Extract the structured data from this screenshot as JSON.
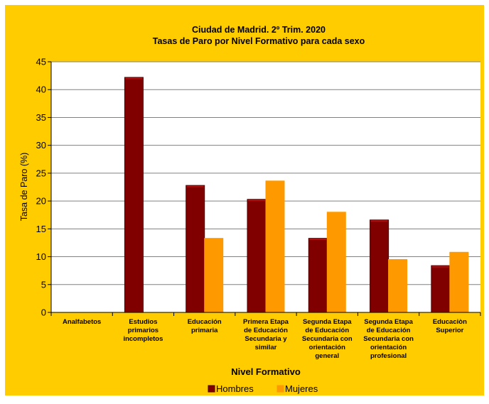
{
  "chart_data": {
    "type": "bar",
    "title": "Ciudad de Madrid. 2º Trim. 2020",
    "subtitle": "Tasas de Paro por Nivel Formativo para cada sexo",
    "xlabel": "Nivel Formativo",
    "ylabel": "Tasa de Paro (%)",
    "ylim": [
      0,
      45
    ],
    "yticks": [
      "0",
      "5",
      "10",
      "15",
      "20",
      "25",
      "30",
      "35",
      "40",
      "45"
    ],
    "grid": true,
    "legend_position": "bottom",
    "categories": [
      [
        "Analfabetos"
      ],
      [
        "Estudios",
        "primarios",
        "incompletos"
      ],
      [
        "Educación",
        "primaria"
      ],
      [
        "Primera Etapa",
        "de Educación",
        "Secundaria y",
        "similar"
      ],
      [
        "Segunda Etapa",
        "de Educación",
        "Secundaria con",
        "orientación",
        "general"
      ],
      [
        "Segunda Etapa",
        "de Educación",
        "Secundaria con",
        "orientación",
        "profesional"
      ],
      [
        "Educaciòn",
        "Superior"
      ]
    ],
    "series": [
      {
        "name": "Hombres",
        "color": "#800000",
        "values": [
          0,
          42.2,
          22.8,
          20.3,
          13.3,
          16.6,
          8.4
        ]
      },
      {
        "name": "Mujeres",
        "color": "#FF9900",
        "values": [
          0,
          0,
          13.3,
          23.6,
          18.0,
          9.5,
          10.8
        ]
      }
    ],
    "colors": {
      "background": "#FFCC00",
      "plot_area": "#FFFFFF",
      "grid": "#808080"
    }
  }
}
